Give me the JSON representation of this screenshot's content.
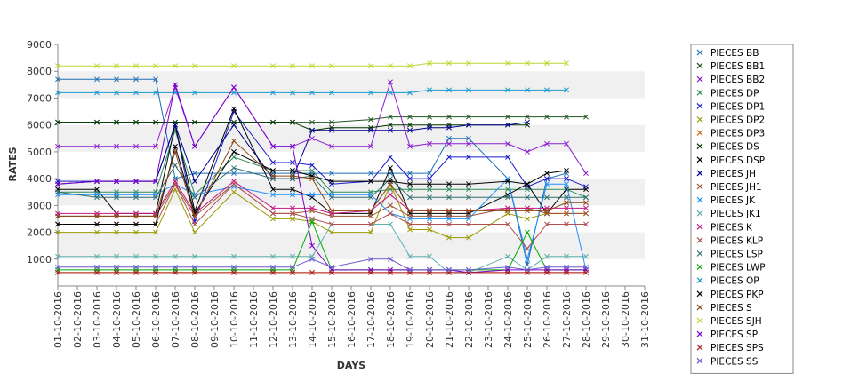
{
  "chart_data": {
    "type": "line",
    "xlabel": "DAYS",
    "ylabel": "RATES",
    "ylim": [
      0,
      9000
    ],
    "yticks": [
      1000,
      2000,
      3000,
      4000,
      5000,
      6000,
      7000,
      8000,
      9000
    ],
    "grid": "alternating horizontal bands",
    "legend": "right",
    "marker": "x",
    "categories": [
      "01-10-2016",
      "02-10-2016",
      "03-10-2016",
      "04-10-2016",
      "05-10-2016",
      "06-10-2016",
      "07-10-2016",
      "08-10-2016",
      "09-10-2016",
      "10-10-2016",
      "11-10-2016",
      "12-10-2016",
      "13-10-2016",
      "14-10-2016",
      "15-10-2016",
      "16-10-2016",
      "17-10-2016",
      "18-10-2016",
      "19-10-2016",
      "20-10-2016",
      "21-10-2016",
      "22-10-2016",
      "23-10-2016",
      "24-10-2016",
      "25-10-2016",
      "26-10-2016",
      "27-10-2016",
      "28-10-2016",
      "29-10-2016",
      "30-10-2016",
      "31-10-2016"
    ],
    "series": [
      {
        "name": "PIECES BB",
        "color": "#1f6fb2",
        "values": [
          7700,
          null,
          7700,
          7700,
          7700,
          7700,
          4000,
          4200,
          null,
          4200,
          null,
          4200,
          4200,
          4200,
          4200,
          null,
          4200,
          4200,
          4200,
          4200,
          5500,
          5500,
          null,
          4000,
          800,
          4000,
          4200,
          null,
          null,
          null,
          null
        ]
      },
      {
        "name": "PIECES BB1",
        "color": "#225522",
        "values": [
          6100,
          null,
          6100,
          6100,
          6100,
          6100,
          6100,
          6100,
          null,
          6100,
          null,
          6100,
          6100,
          6100,
          6100,
          null,
          6200,
          6300,
          6300,
          6300,
          6300,
          6300,
          null,
          6300,
          6300,
          6300,
          6300,
          6300,
          null,
          null,
          null
        ]
      },
      {
        "name": "PIECES BB2",
        "color": "#8b1fd0",
        "values": [
          5200,
          null,
          5200,
          5200,
          5200,
          5200,
          7400,
          5200,
          null,
          7400,
          null,
          5200,
          5200,
          5500,
          5200,
          null,
          5200,
          7600,
          5200,
          5300,
          5300,
          5300,
          null,
          5300,
          5000,
          5300,
          5300,
          4200,
          null,
          null,
          null
        ]
      },
      {
        "name": "PIECES DP",
        "color": "#2e8b57",
        "values": [
          3500,
          null,
          3500,
          3500,
          3500,
          3500,
          5800,
          3400,
          null,
          4800,
          null,
          4300,
          4300,
          4300,
          3500,
          null,
          3500,
          3600,
          3600,
          3600,
          3600,
          3600,
          null,
          3600,
          3600,
          null,
          3600,
          3300,
          null,
          null,
          null
        ]
      },
      {
        "name": "PIECES DP1",
        "color": "#1a1acc",
        "values": [
          3900,
          null,
          3900,
          3900,
          3900,
          3900,
          6000,
          2400,
          null,
          6500,
          null,
          4600,
          4600,
          4500,
          3800,
          null,
          3900,
          4800,
          4000,
          4000,
          4800,
          4800,
          null,
          4800,
          3700,
          4000,
          4000,
          3700,
          null,
          null,
          null
        ]
      },
      {
        "name": "PIECES DP2",
        "color": "#999900",
        "values": [
          2000,
          null,
          2000,
          2000,
          2000,
          2000,
          3600,
          2000,
          null,
          3500,
          null,
          2500,
          2500,
          2400,
          2000,
          null,
          2000,
          3800,
          2100,
          2100,
          1800,
          1800,
          null,
          2700,
          2500,
          2700,
          2700,
          2700,
          null,
          null,
          null
        ]
      },
      {
        "name": "PIECES DP3",
        "color": "#d2691e",
        "values": [
          500,
          null,
          500,
          500,
          500,
          500,
          500,
          500,
          null,
          500,
          null,
          500,
          500,
          500,
          500,
          null,
          500,
          500,
          500,
          500,
          500,
          500,
          null,
          500,
          500,
          500,
          500,
          500,
          null,
          null,
          null
        ]
      },
      {
        "name": "PIECES DS",
        "color": "#003300",
        "values": [
          6100,
          null,
          6100,
          6100,
          6100,
          6100,
          6100,
          6100,
          null,
          6100,
          null,
          6100,
          6100,
          5800,
          5900,
          null,
          5900,
          6000,
          6000,
          6000,
          6000,
          6000,
          null,
          6000,
          6000,
          null,
          null,
          null,
          null,
          null,
          null
        ]
      },
      {
        "name": "PIECES DSP",
        "color": "#000000",
        "values": [
          3600,
          null,
          3600,
          2700,
          2700,
          2700,
          6000,
          2800,
          null,
          6600,
          null,
          3600,
          3600,
          3300,
          2700,
          null,
          2700,
          4400,
          2700,
          2700,
          2700,
          2700,
          null,
          3400,
          3800,
          2700,
          3600,
          3600,
          null,
          null,
          null
        ]
      },
      {
        "name": "PIECES JH",
        "color": "#00008b",
        "values": [
          3800,
          null,
          3900,
          3900,
          3900,
          3900,
          6000,
          3900,
          null,
          6000,
          null,
          4000,
          4000,
          5800,
          5800,
          null,
          5800,
          5800,
          5800,
          5900,
          5900,
          6000,
          null,
          6000,
          6100,
          null,
          null,
          null,
          null,
          null,
          null
        ]
      },
      {
        "name": "PIECES JH1",
        "color": "#a0522d",
        "values": [
          2600,
          null,
          2600,
          2600,
          2600,
          2600,
          3800,
          2600,
          null,
          3800,
          null,
          2700,
          2700,
          2800,
          2600,
          null,
          2600,
          3000,
          2600,
          2600,
          2600,
          2600,
          null,
          2900,
          2900,
          2700,
          2700,
          2700,
          null,
          null,
          null
        ]
      },
      {
        "name": "PIECES JK",
        "color": "#1e90ff",
        "values": [
          3400,
          null,
          3400,
          3400,
          3400,
          3400,
          3800,
          3400,
          null,
          3700,
          null,
          3400,
          3400,
          3400,
          3400,
          null,
          3400,
          2700,
          2500,
          2500,
          2500,
          2500,
          null,
          4000,
          1000,
          3800,
          3800,
          600,
          null,
          null,
          null
        ]
      },
      {
        "name": "PIECES JK1",
        "color": "#5fb0b0",
        "values": [
          1100,
          null,
          1100,
          1100,
          1100,
          1100,
          1100,
          1100,
          null,
          1100,
          null,
          1100,
          1100,
          1100,
          2300,
          null,
          2300,
          2300,
          1100,
          1100,
          500,
          500,
          null,
          1100,
          600,
          1100,
          1100,
          1100,
          null,
          null,
          null
        ]
      },
      {
        "name": "PIECES K",
        "color": "#c71585",
        "values": [
          2700,
          null,
          2700,
          2700,
          2700,
          2700,
          3900,
          2700,
          null,
          3900,
          null,
          2900,
          2900,
          2900,
          2700,
          null,
          2800,
          3400,
          2800,
          2800,
          2800,
          2800,
          null,
          2900,
          2900,
          2900,
          2900,
          2900,
          null,
          null,
          null
        ]
      },
      {
        "name": "PIECES KLP",
        "color": "#b05050",
        "values": [
          2300,
          null,
          2300,
          2300,
          2300,
          2300,
          3800,
          2300,
          null,
          3800,
          null,
          2700,
          2700,
          2500,
          2300,
          null,
          2300,
          2700,
          2300,
          2300,
          2300,
          2300,
          null,
          2300,
          1400,
          2300,
          2300,
          2300,
          null,
          null,
          null
        ]
      },
      {
        "name": "PIECES LSP",
        "color": "#2f6f6f",
        "values": [
          3500,
          null,
          3300,
          3300,
          3300,
          3300,
          4500,
          3300,
          null,
          4400,
          null,
          4000,
          4000,
          4100,
          3300,
          null,
          3300,
          4000,
          3300,
          3300,
          3300,
          3300,
          null,
          3300,
          3300,
          3300,
          3300,
          3300,
          null,
          null,
          null
        ]
      },
      {
        "name": "PIECES LWP",
        "color": "#00aa00",
        "values": [
          600,
          null,
          600,
          600,
          600,
          600,
          600,
          600,
          null,
          600,
          null,
          600,
          600,
          2400,
          600,
          null,
          600,
          600,
          600,
          600,
          600,
          600,
          null,
          600,
          2000,
          600,
          600,
          600,
          null,
          null,
          null
        ]
      },
      {
        "name": "PIECES OP",
        "color": "#1a9acc",
        "values": [
          7200,
          null,
          7200,
          7200,
          7200,
          7200,
          7200,
          7200,
          null,
          7200,
          null,
          7200,
          7200,
          7200,
          7200,
          null,
          7200,
          7200,
          7200,
          7300,
          7300,
          7300,
          null,
          7300,
          7300,
          7300,
          7300,
          null,
          null,
          null,
          null
        ]
      },
      {
        "name": "PIECES PKP",
        "color": "#000000",
        "values": [
          2300,
          null,
          2300,
          2300,
          2300,
          2300,
          5200,
          2700,
          null,
          5000,
          null,
          4300,
          4300,
          4100,
          3900,
          null,
          3900,
          3900,
          3800,
          3800,
          3800,
          3800,
          null,
          3900,
          3800,
          4200,
          4300,
          null,
          null,
          null,
          null
        ]
      },
      {
        "name": "PIECES S",
        "color": "#8b4513",
        "values": [
          2600,
          null,
          2600,
          2600,
          2600,
          2600,
          5000,
          2600,
          null,
          5400,
          null,
          4100,
          4100,
          4000,
          2800,
          null,
          2800,
          3800,
          2800,
          2800,
          2800,
          2800,
          null,
          2800,
          2800,
          2800,
          3100,
          3100,
          null,
          null,
          null
        ]
      },
      {
        "name": "PIECES SJH",
        "color": "#b8d82a",
        "values": [
          8200,
          null,
          8200,
          8200,
          8200,
          8200,
          8200,
          8200,
          null,
          8200,
          null,
          8200,
          8200,
          8200,
          8200,
          null,
          8200,
          8200,
          8200,
          8300,
          8300,
          8300,
          null,
          8300,
          8300,
          8300,
          8300,
          null,
          null,
          null,
          null
        ]
      },
      {
        "name": "PIECES SP",
        "color": "#7a00cc",
        "values": [
          3800,
          null,
          3900,
          3900,
          3900,
          3900,
          7500,
          5200,
          null,
          7400,
          null,
          5200,
          5200,
          1500,
          600,
          null,
          600,
          600,
          600,
          600,
          600,
          500,
          null,
          600,
          600,
          600,
          600,
          600,
          null,
          null,
          null
        ]
      },
      {
        "name": "PIECES SPS",
        "color": "#b22222",
        "values": [
          500,
          null,
          500,
          500,
          500,
          500,
          500,
          500,
          null,
          500,
          null,
          500,
          500,
          500,
          500,
          null,
          500,
          500,
          500,
          500,
          500,
          500,
          null,
          500,
          500,
          500,
          500,
          500,
          null,
          null,
          null
        ]
      },
      {
        "name": "PIECES SS",
        "color": "#6a5acd",
        "values": [
          700,
          null,
          700,
          700,
          700,
          700,
          700,
          700,
          null,
          700,
          null,
          700,
          700,
          1000,
          700,
          null,
          1000,
          1000,
          600,
          600,
          600,
          600,
          null,
          700,
          600,
          700,
          700,
          700,
          null,
          null,
          null
        ]
      }
    ]
  }
}
